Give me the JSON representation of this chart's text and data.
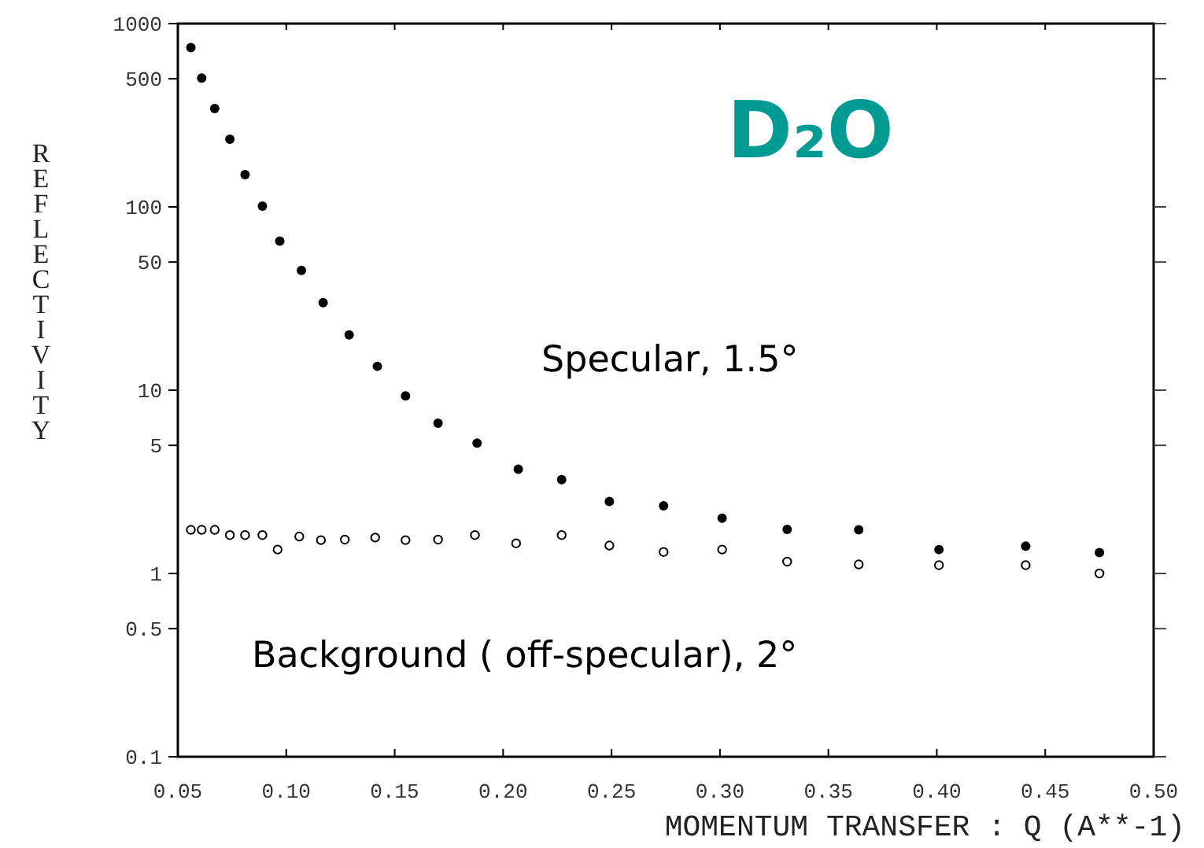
{
  "chart_data": {
    "type": "scatter",
    "xlabel": "MOMENTUM TRANSFER : Q (A**-1)",
    "ylabel": "REFLECTIVITY",
    "log": "y",
    "marker": "circle",
    "grid": false,
    "xlim": [
      0.05,
      0.5
    ],
    "xticks": [
      {
        "value": 0.05,
        "label": "0.05"
      },
      {
        "value": 0.1,
        "label": "0.10"
      },
      {
        "value": 0.15,
        "label": "0.15"
      },
      {
        "value": 0.2,
        "label": "0.20"
      },
      {
        "value": 0.25,
        "label": "0.25"
      },
      {
        "value": 0.3,
        "label": "0.30"
      },
      {
        "value": 0.35,
        "label": "0.35"
      },
      {
        "value": 0.4,
        "label": "0.40"
      },
      {
        "value": 0.45,
        "label": "0.45"
      },
      {
        "value": 0.5,
        "label": "0.50"
      }
    ],
    "ylim": [
      0.1,
      1000
    ],
    "yticks": [
      0.1,
      0.5,
      1,
      5,
      10,
      50,
      100,
      500,
      1000
    ],
    "annotations": [
      "D₂O"
    ],
    "series": [
      {
        "name": "Specular, 1.5°",
        "color": "#000000",
        "x": [
          0.056,
          0.061,
          0.067,
          0.074,
          0.081,
          0.089,
          0.097,
          0.107,
          0.117,
          0.129,
          0.142,
          0.155,
          0.17,
          0.188,
          0.207,
          0.227,
          0.249,
          0.274,
          0.301,
          0.331,
          0.364,
          0.401,
          0.441,
          0.475
        ],
        "values": [
          740,
          505,
          344,
          234,
          150,
          101,
          65,
          45,
          30,
          20,
          13.5,
          9.3,
          6.6,
          5.15,
          3.7,
          3.25,
          2.47,
          2.34,
          2.0,
          1.74,
          1.73,
          1.35,
          1.41,
          1.3
        ]
      },
      {
        "name": "Background ( off-specular), 2°",
        "color": "#000000",
        "x": [
          0.056,
          0.061,
          0.067,
          0.074,
          0.081,
          0.089,
          0.096,
          0.106,
          0.116,
          0.127,
          0.141,
          0.155,
          0.17,
          0.187,
          0.206,
          0.227,
          0.249,
          0.274,
          0.301,
          0.331,
          0.364,
          0.401,
          0.441,
          0.475
        ],
        "values": [
          1.73,
          1.73,
          1.73,
          1.62,
          1.62,
          1.62,
          1.35,
          1.59,
          1.52,
          1.53,
          1.57,
          1.52,
          1.53,
          1.62,
          1.46,
          1.62,
          1.42,
          1.31,
          1.35,
          1.16,
          1.12,
          1.11,
          1.11,
          1.0
        ]
      }
    ]
  }
}
